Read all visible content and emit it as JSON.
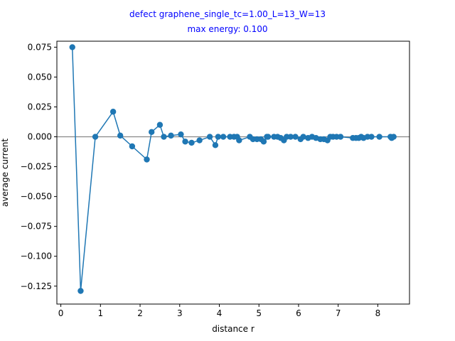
{
  "chart_data": {
    "type": "line",
    "title": "defect graphene_single_tc=1.00_L=13_W=13",
    "subtitle": "max energy: 0.100",
    "xlabel": "distance r",
    "ylabel": "average current",
    "xlim": [
      -0.1,
      8.8
    ],
    "ylim": [
      -0.14,
      0.08
    ],
    "xticks": [
      0,
      1,
      2,
      3,
      4,
      5,
      6,
      7,
      8
    ],
    "yticks": [
      -0.125,
      -0.1,
      -0.075,
      -0.05,
      -0.025,
      0.0,
      0.025,
      0.05,
      0.075
    ],
    "xtick_labels": [
      "0",
      "1",
      "2",
      "3",
      "4",
      "5",
      "6",
      "7",
      "8"
    ],
    "ytick_labels": [
      "−0.125",
      "−0.100",
      "−0.075",
      "−0.050",
      "−0.025",
      "0.000",
      "0.025",
      "0.050",
      "0.075"
    ],
    "reference_line": {
      "y": 0
    },
    "grid": false,
    "colors": {
      "series": "#1f77b4",
      "title": "#0000ff",
      "reference": "#808080"
    },
    "series": [
      {
        "marker": "circle",
        "x": [
          0.29,
          0.5,
          0.87,
          1.32,
          1.5,
          1.8,
          2.17,
          2.29,
          2.5,
          2.6,
          2.78,
          3.03,
          3.14,
          3.3,
          3.5,
          3.76,
          3.9,
          3.97,
          4.1,
          4.27,
          4.37,
          4.45,
          4.5,
          4.77,
          4.85,
          4.95,
          5.05,
          5.12,
          5.2,
          5.23,
          5.38,
          5.47,
          5.55,
          5.63,
          5.7,
          5.8,
          5.92,
          6.05,
          6.12,
          6.24,
          6.34,
          6.44,
          6.55,
          6.64,
          6.73,
          6.8,
          6.87,
          6.96,
          7.06,
          7.37,
          7.45,
          7.52,
          7.58,
          7.64,
          7.74,
          7.84,
          8.04,
          8.32,
          8.35,
          8.4
        ],
        "y": [
          0.075,
          -0.129,
          0.0,
          0.021,
          0.001,
          -0.008,
          -0.019,
          0.004,
          0.01,
          0.0,
          0.001,
          0.002,
          -0.004,
          -0.005,
          -0.003,
          0.0,
          -0.007,
          0.0,
          0.0,
          0.0,
          0.0,
          0.0,
          -0.003,
          0.0,
          -0.002,
          -0.002,
          -0.002,
          -0.004,
          0.0,
          0.0,
          0.0,
          0.0,
          -0.001,
          -0.003,
          0.0,
          0.0,
          0.0,
          -0.002,
          0.0,
          -0.001,
          0.0,
          -0.001,
          -0.002,
          -0.002,
          -0.003,
          0.0,
          0.0,
          0.0,
          0.0,
          -0.001,
          -0.001,
          -0.001,
          0.0,
          -0.001,
          0.0,
          0.0,
          0.0,
          0.0,
          -0.001,
          0.0
        ]
      }
    ]
  }
}
